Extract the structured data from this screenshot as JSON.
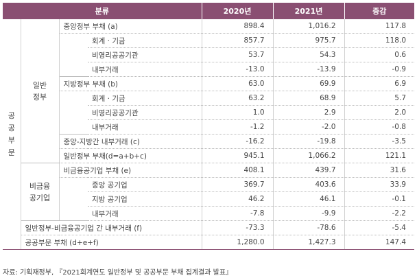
{
  "header": {
    "category": "분류",
    "y2020": "2020년",
    "y2021": "2021년",
    "diff": "증감"
  },
  "public_sector": "공공부문",
  "general_gov": "일반\n정부",
  "nonfin": "비금융\n공기업",
  "rows": [
    {
      "label": "중앙정부 부채 (a)",
      "y2020": "898.4",
      "y2021": "1,016.2",
      "diff": "117.8"
    },
    {
      "label": "회계 · 기금",
      "y2020": "857.7",
      "y2021": "975.7",
      "diff": "118.0"
    },
    {
      "label": "비영리공공기관",
      "y2020": "53.7",
      "y2021": "54.3",
      "diff": "0.6"
    },
    {
      "label": "내부거래",
      "y2020": "-13.0",
      "y2021": "-13.9",
      "diff": "-0.9"
    },
    {
      "label": "지방정부 부채 (b)",
      "y2020": "63.0",
      "y2021": "69.9",
      "diff": "6.9"
    },
    {
      "label": "회계 · 기금",
      "y2020": "63.2",
      "y2021": "68.9",
      "diff": "5.7"
    },
    {
      "label": "비영리공공기관",
      "y2020": "1.0",
      "y2021": "2.9",
      "diff": "2.0"
    },
    {
      "label": "내부거래",
      "y2020": "-1.2",
      "y2021": "-2.0",
      "diff": "-0.8"
    },
    {
      "label": "중앙-지방간 내부거래 (c)",
      "y2020": "-16.2",
      "y2021": "-19.8",
      "diff": "-3.5"
    },
    {
      "label": "일반정부 부채(d=a+b+c)",
      "y2020": "945.1",
      "y2021": "1,066.2",
      "diff": "121.1"
    },
    {
      "label": "비금융공기업 부채 (e)",
      "y2020": "408.1",
      "y2021": "439.7",
      "diff": "31.6"
    },
    {
      "label": "중앙 공기업",
      "y2020": "369.7",
      "y2021": "403.6",
      "diff": "33.9"
    },
    {
      "label": "지방 공기업",
      "y2020": "46.2",
      "y2021": "46.1",
      "diff": "-0.1"
    },
    {
      "label": "내부거래",
      "y2020": "-7.8",
      "y2021": "-9.9",
      "diff": "-2.2"
    },
    {
      "label": "일반정부-비금융공기업 간 내부거래 (f)",
      "y2020": "-73.3",
      "y2021": "-78.6",
      "diff": "-5.4"
    },
    {
      "label": "공공부문 부채 (d+e+f)",
      "y2020": "1,280.0",
      "y2021": "1,427.3",
      "diff": "147.4"
    }
  ],
  "source": "자료: 기획재정부, 『2021회계연도 일반정부 및 공공부문 부채 집계결과 발표』"
}
